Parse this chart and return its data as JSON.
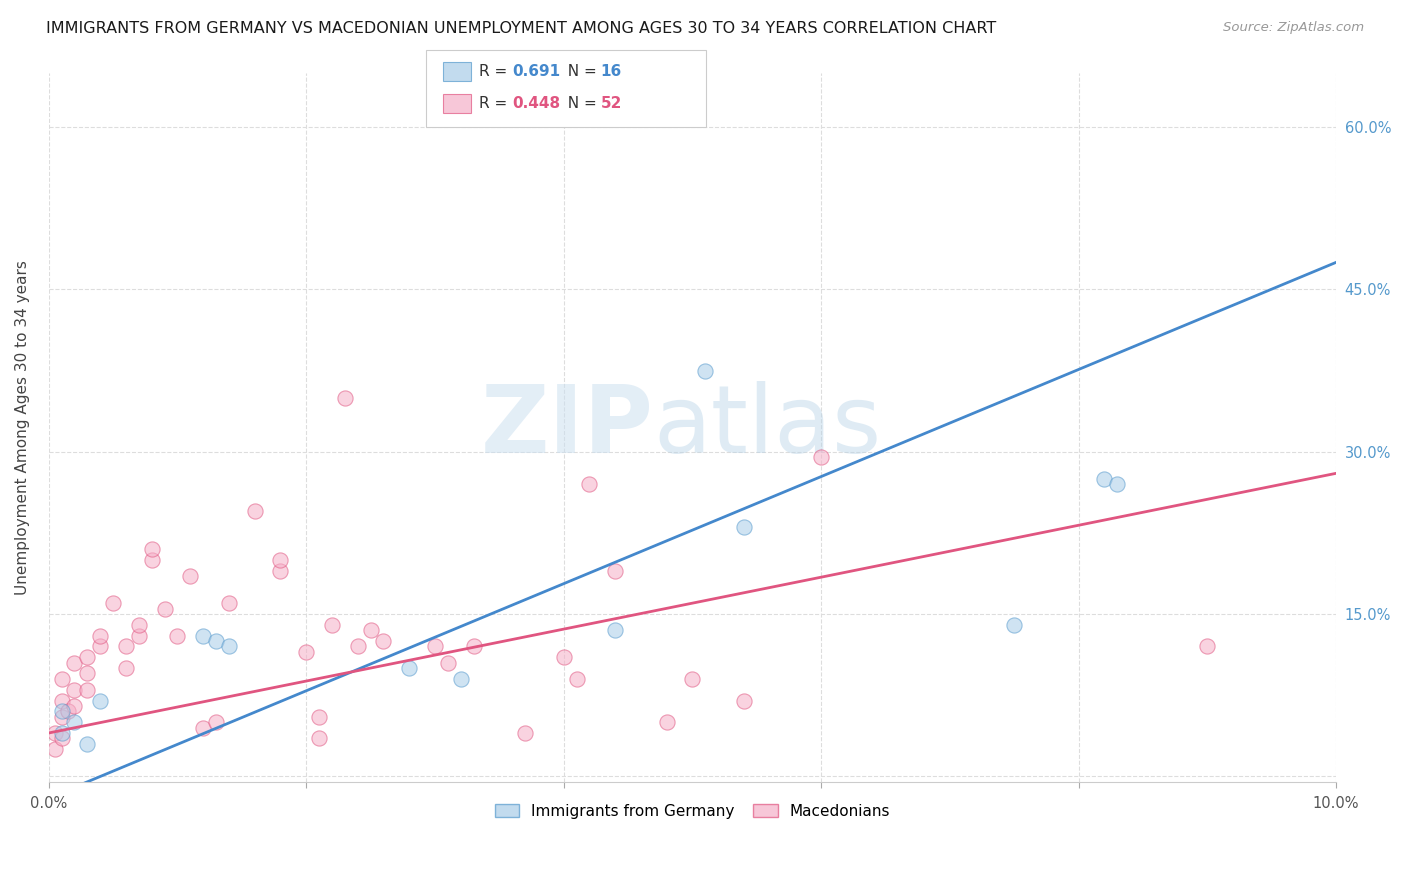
{
  "title": "IMMIGRANTS FROM GERMANY VS MACEDONIAN UNEMPLOYMENT AMONG AGES 30 TO 34 YEARS CORRELATION CHART",
  "source": "Source: ZipAtlas.com",
  "ylabel": "Unemployment Among Ages 30 to 34 years",
  "xlim": [
    0.0,
    0.1
  ],
  "ylim": [
    -0.005,
    0.65
  ],
  "xticks": [
    0.0,
    0.02,
    0.04,
    0.06,
    0.08,
    0.1
  ],
  "xticklabels": [
    "0.0%",
    "",
    "",
    "",
    "",
    "10.0%"
  ],
  "yticks": [
    0.0,
    0.15,
    0.3,
    0.45,
    0.6
  ],
  "right_yticklabels": [
    "",
    "15.0%",
    "30.0%",
    "45.0%",
    "60.0%"
  ],
  "blue_scatter_x": [
    0.001,
    0.001,
    0.002,
    0.003,
    0.004,
    0.012,
    0.013,
    0.014,
    0.028,
    0.032,
    0.044,
    0.051,
    0.054,
    0.075,
    0.082,
    0.083
  ],
  "blue_scatter_y": [
    0.04,
    0.06,
    0.05,
    0.03,
    0.07,
    0.13,
    0.125,
    0.12,
    0.1,
    0.09,
    0.135,
    0.375,
    0.23,
    0.14,
    0.275,
    0.27
  ],
  "pink_scatter_x": [
    0.0005,
    0.0005,
    0.001,
    0.001,
    0.001,
    0.001,
    0.0015,
    0.002,
    0.002,
    0.002,
    0.003,
    0.003,
    0.003,
    0.004,
    0.004,
    0.005,
    0.006,
    0.006,
    0.007,
    0.007,
    0.008,
    0.008,
    0.009,
    0.01,
    0.011,
    0.012,
    0.013,
    0.014,
    0.016,
    0.018,
    0.018,
    0.02,
    0.021,
    0.021,
    0.022,
    0.023,
    0.024,
    0.025,
    0.026,
    0.03,
    0.031,
    0.033,
    0.037,
    0.04,
    0.041,
    0.042,
    0.044,
    0.048,
    0.05,
    0.054,
    0.06,
    0.09
  ],
  "pink_scatter_y": [
    0.025,
    0.04,
    0.035,
    0.055,
    0.07,
    0.09,
    0.06,
    0.065,
    0.08,
    0.105,
    0.08,
    0.095,
    0.11,
    0.12,
    0.13,
    0.16,
    0.1,
    0.12,
    0.13,
    0.14,
    0.2,
    0.21,
    0.155,
    0.13,
    0.185,
    0.045,
    0.05,
    0.16,
    0.245,
    0.19,
    0.2,
    0.115,
    0.055,
    0.035,
    0.14,
    0.35,
    0.12,
    0.135,
    0.125,
    0.12,
    0.105,
    0.12,
    0.04,
    0.11,
    0.09,
    0.27,
    0.19,
    0.05,
    0.09,
    0.07,
    0.295,
    0.12
  ],
  "blue_line_x": [
    0.0,
    0.1
  ],
  "blue_line_y": [
    -0.02,
    0.475
  ],
  "pink_line_x": [
    0.0,
    0.1
  ],
  "pink_line_y": [
    0.04,
    0.28
  ],
  "blue_fill": "#a8cce8",
  "blue_edge": "#5599cc",
  "pink_fill": "#f5b0c8",
  "pink_edge": "#e05580",
  "blue_line_color": "#4488cc",
  "pink_line_color": "#e05580",
  "watermark_zip": "ZIP",
  "watermark_atlas": "atlas",
  "bg": "#ffffff",
  "grid_color": "#dddddd",
  "scatter_size": 120,
  "scatter_alpha": 0.55,
  "bottom_legend": [
    "Immigrants from Germany",
    "Macedonians"
  ]
}
